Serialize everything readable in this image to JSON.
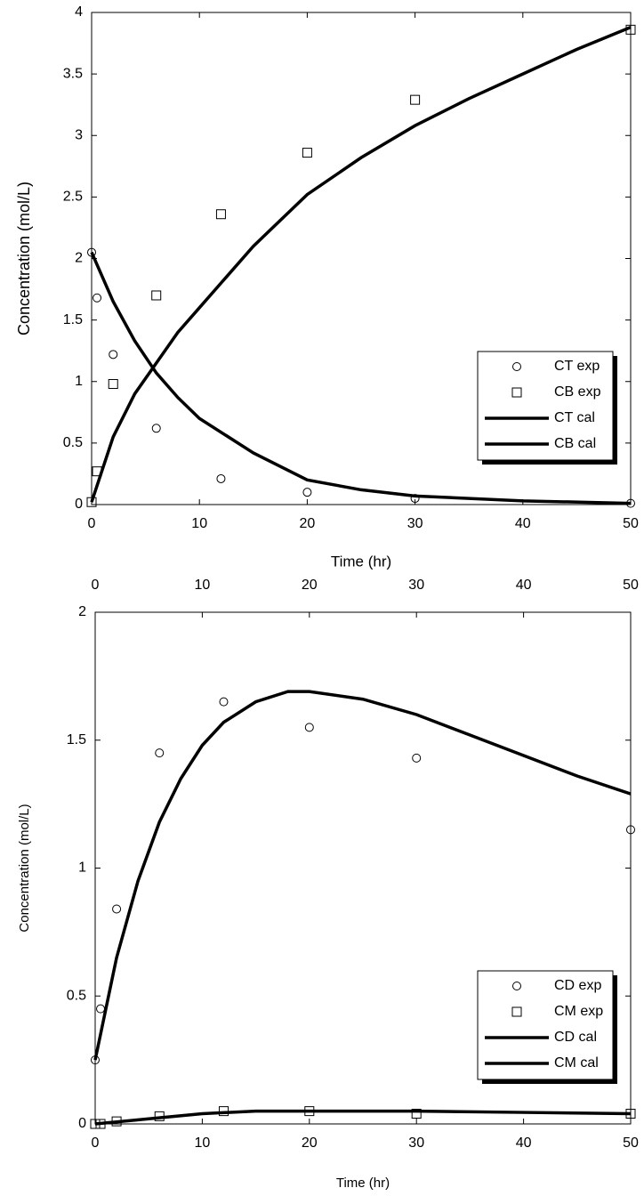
{
  "chart_data": [
    {
      "type": "line",
      "xlabel": "Time (hr)",
      "ylabel": "Concentration (mol/L)",
      "xlim": [
        0,
        50
      ],
      "ylim": [
        0,
        4
      ],
      "xticks": [
        0,
        10,
        20,
        30,
        40,
        50
      ],
      "yticks": [
        0,
        0.5,
        1,
        1.5,
        2,
        2.5,
        3,
        3.5,
        4
      ],
      "legend": "lower right",
      "series": [
        {
          "name": "CT exp",
          "color": "#000000",
          "marker": "circle",
          "x": [
            0,
            0.5,
            2,
            6,
            12,
            20,
            30,
            50
          ],
          "values": [
            2.05,
            1.68,
            1.22,
            0.62,
            0.21,
            0.1,
            0.05,
            0.01
          ]
        },
        {
          "name": "CB exp",
          "color": "#000000",
          "marker": "square",
          "x": [
            0,
            0.5,
            2,
            6,
            12,
            20,
            30,
            50
          ],
          "values": [
            0.02,
            0.27,
            0.98,
            1.7,
            2.36,
            2.86,
            3.29,
            3.86
          ]
        },
        {
          "name": "CT cal",
          "color": "#000000",
          "marker": "none",
          "x": [
            0,
            2,
            4,
            6,
            8,
            10,
            15,
            20,
            25,
            30,
            40,
            50
          ],
          "values": [
            2.05,
            1.65,
            1.33,
            1.07,
            0.87,
            0.7,
            0.42,
            0.2,
            0.12,
            0.07,
            0.03,
            0.01
          ]
        },
        {
          "name": "CB cal",
          "color": "#000000",
          "marker": "none",
          "x": [
            0,
            2,
            4,
            6,
            8,
            10,
            12,
            15,
            20,
            25,
            30,
            35,
            40,
            45,
            50
          ],
          "values": [
            0.02,
            0.55,
            0.9,
            1.15,
            1.4,
            1.6,
            1.8,
            2.1,
            2.52,
            2.82,
            3.08,
            3.3,
            3.5,
            3.7,
            3.88
          ]
        }
      ]
    },
    {
      "type": "line",
      "xlabel": "Time (hr)",
      "ylabel": "Concentration (mol/L)",
      "top_x_labels": true,
      "xlim": [
        0,
        50
      ],
      "ylim": [
        0,
        2
      ],
      "xticks": [
        0,
        10,
        20,
        30,
        40,
        50
      ],
      "yticks": [
        0,
        0.5,
        1,
        1.5,
        2
      ],
      "legend": "lower right",
      "series": [
        {
          "name": "CD exp",
          "color": "#000000",
          "marker": "circle",
          "x": [
            0,
            0.5,
            2,
            6,
            12,
            20,
            30,
            50
          ],
          "values": [
            0.25,
            0.45,
            0.84,
            1.45,
            1.65,
            1.55,
            1.43,
            1.15
          ]
        },
        {
          "name": "CM exp",
          "color": "#000000",
          "marker": "square",
          "x": [
            0,
            0.5,
            2,
            6,
            12,
            20,
            30,
            50
          ],
          "values": [
            0,
            0,
            0.01,
            0.03,
            0.05,
            0.05,
            0.04,
            0.04
          ]
        },
        {
          "name": "CD cal",
          "color": "#000000",
          "marker": "none",
          "x": [
            0,
            1,
            2,
            4,
            6,
            8,
            10,
            12,
            15,
            18,
            20,
            25,
            30,
            35,
            40,
            45,
            50
          ],
          "values": [
            0.25,
            0.45,
            0.65,
            0.95,
            1.18,
            1.35,
            1.48,
            1.57,
            1.65,
            1.69,
            1.69,
            1.66,
            1.6,
            1.52,
            1.44,
            1.36,
            1.29
          ]
        },
        {
          "name": "CM cal",
          "color": "#000000",
          "marker": "none",
          "x": [
            0,
            5,
            10,
            15,
            20,
            30,
            40,
            50
          ],
          "values": [
            0,
            0.02,
            0.04,
            0.05,
            0.05,
            0.05,
            0.045,
            0.04
          ]
        }
      ]
    }
  ]
}
